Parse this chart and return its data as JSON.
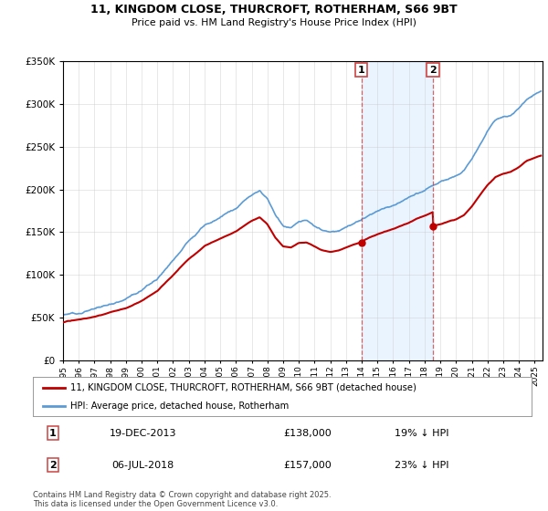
{
  "title": "11, KINGDOM CLOSE, THURCROFT, ROTHERHAM, S66 9BT",
  "subtitle": "Price paid vs. HM Land Registry's House Price Index (HPI)",
  "legend_line1": "11, KINGDOM CLOSE, THURCROFT, ROTHERHAM, S66 9BT (detached house)",
  "legend_line2": "HPI: Average price, detached house, Rotherham",
  "transaction1_date": "19-DEC-2013",
  "transaction1_price": "£138,000",
  "transaction1_hpi": "19% ↓ HPI",
  "transaction2_date": "06-JUL-2018",
  "transaction2_price": "£157,000",
  "transaction2_hpi": "23% ↓ HPI",
  "footer": "Contains HM Land Registry data © Crown copyright and database right 2025.\nThis data is licensed under the Open Government Licence v3.0.",
  "hpi_color": "#5b9bd5",
  "price_color": "#c00000",
  "shaded_color": "#ddeeff",
  "marker1_x": 2013.97,
  "marker2_x": 2018.52,
  "ylim_min": 0,
  "ylim_max": 350000,
  "xlim_min": 1995,
  "xlim_max": 2025.5
}
